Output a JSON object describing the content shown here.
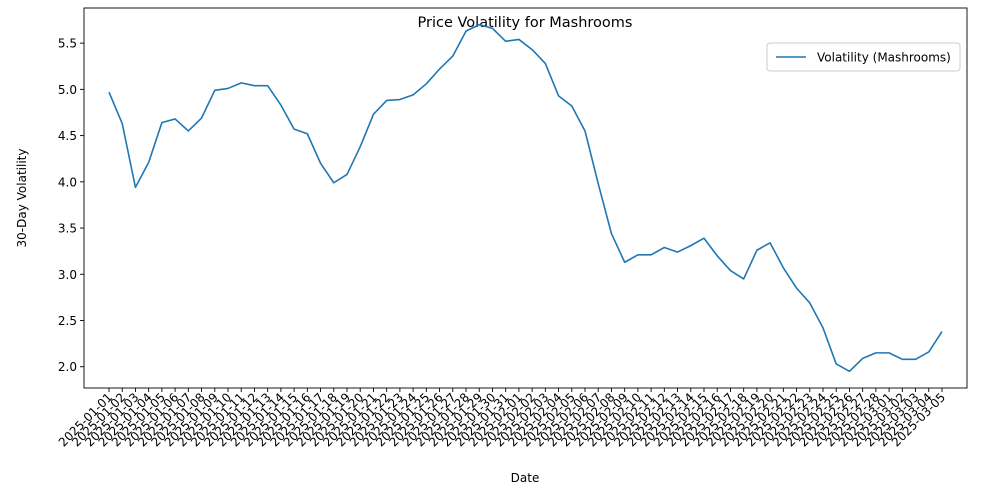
{
  "chart_data": {
    "type": "line",
    "title": "Price Volatility for Mashrooms",
    "xlabel": "Date",
    "ylabel": "30-Day Volatility",
    "ylim": [
      1.77,
      5.88
    ],
    "yticks": [
      "2.0",
      "2.5",
      "3.0",
      "3.5",
      "4.0",
      "4.5",
      "5.0",
      "5.5"
    ],
    "grid": false,
    "legend_position": "top-right",
    "line_color": "#1f77b4",
    "x": [
      "2025-01-01",
      "2025-01-02",
      "2025-01-03",
      "2025-01-04",
      "2025-01-05",
      "2025-01-06",
      "2025-01-07",
      "2025-01-08",
      "2025-01-09",
      "2025-01-10",
      "2025-01-11",
      "2025-01-12",
      "2025-01-13",
      "2025-01-14",
      "2025-01-15",
      "2025-01-16",
      "2025-01-17",
      "2025-01-18",
      "2025-01-19",
      "2025-01-20",
      "2025-01-21",
      "2025-01-22",
      "2025-01-23",
      "2025-01-24",
      "2025-01-25",
      "2025-01-26",
      "2025-01-27",
      "2025-01-28",
      "2025-01-29",
      "2025-01-30",
      "2025-01-31",
      "2025-02-01",
      "2025-02-02",
      "2025-02-03",
      "2025-02-04",
      "2025-02-05",
      "2025-02-06",
      "2025-02-07",
      "2025-02-08",
      "2025-02-09",
      "2025-02-10",
      "2025-02-11",
      "2025-02-12",
      "2025-02-13",
      "2025-02-14",
      "2025-02-15",
      "2025-02-16",
      "2025-02-17",
      "2025-02-18",
      "2025-02-19",
      "2025-02-20",
      "2025-02-21",
      "2025-02-22",
      "2025-02-23",
      "2025-02-24",
      "2025-02-25",
      "2025-02-26",
      "2025-02-27",
      "2025-02-28",
      "2025-03-01",
      "2025-03-02",
      "2025-03-03",
      "2025-03-04",
      "2025-03-05"
    ],
    "series": [
      {
        "name": "Volatility (Mashrooms)",
        "values": [
          4.97,
          4.63,
          3.94,
          4.21,
          4.64,
          4.68,
          4.55,
          4.69,
          4.99,
          5.01,
          5.07,
          5.04,
          5.04,
          4.83,
          4.57,
          4.52,
          4.2,
          3.99,
          4.08,
          4.38,
          4.73,
          4.88,
          4.89,
          4.94,
          5.06,
          5.22,
          5.36,
          5.63,
          5.7,
          5.66,
          5.52,
          5.54,
          5.43,
          5.28,
          4.93,
          4.82,
          4.55,
          3.98,
          3.44,
          3.13,
          3.21,
          3.21,
          3.29,
          3.24,
          3.31,
          3.39,
          3.2,
          3.04,
          2.95,
          3.26,
          3.34,
          3.07,
          2.85,
          2.69,
          2.42,
          2.03,
          1.95,
          2.09,
          2.15,
          2.15,
          2.08,
          2.08,
          2.16,
          2.38
        ]
      }
    ]
  }
}
